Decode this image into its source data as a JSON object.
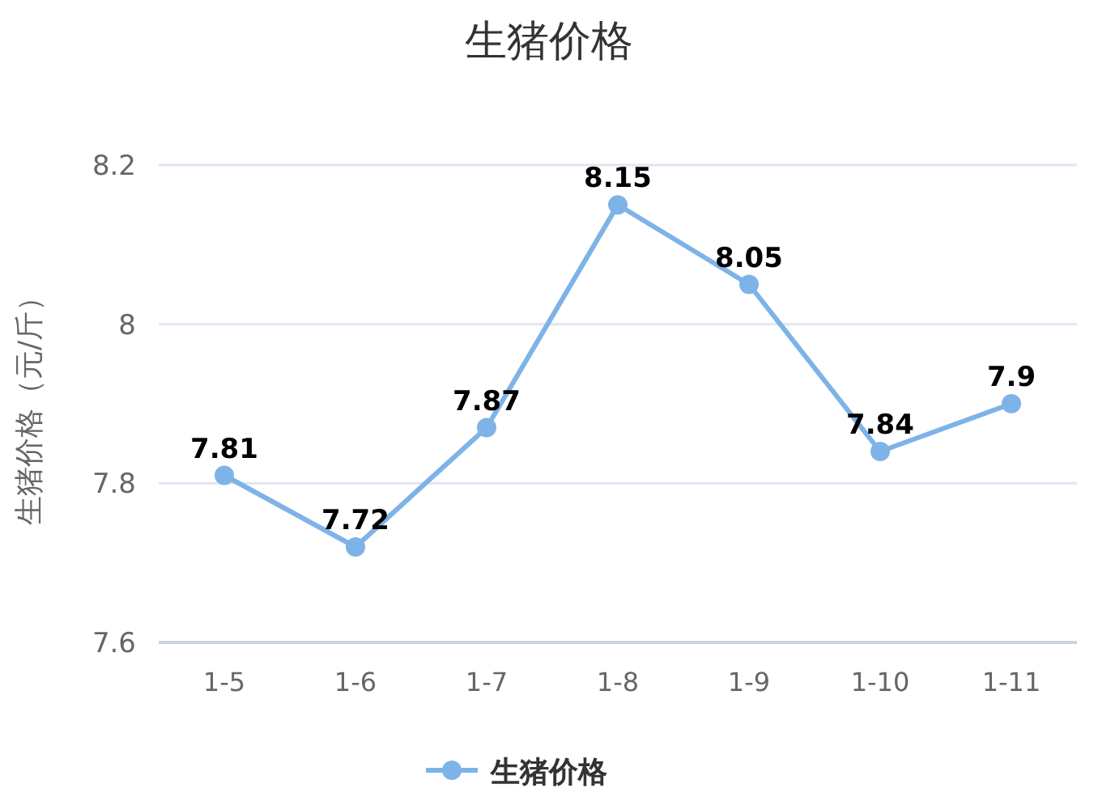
{
  "chart_data": {
    "type": "line",
    "title": "生猪价格",
    "ylabel": "生猪价格（元/斤）",
    "categories": [
      "1-5",
      "1-6",
      "1-7",
      "1-8",
      "1-9",
      "1-10",
      "1-11"
    ],
    "series": [
      {
        "name": "生猪价格",
        "color": "#7eb3e8",
        "values": [
          7.81,
          7.72,
          7.87,
          8.15,
          8.05,
          7.84,
          7.9
        ]
      }
    ],
    "ylim": [
      7.6,
      8.2
    ],
    "yticks": [
      7.6,
      7.8,
      8,
      8.2
    ],
    "grid": "y",
    "legend": "bottom",
    "marker": "circle",
    "line_style": "solid",
    "data_labels": true
  }
}
